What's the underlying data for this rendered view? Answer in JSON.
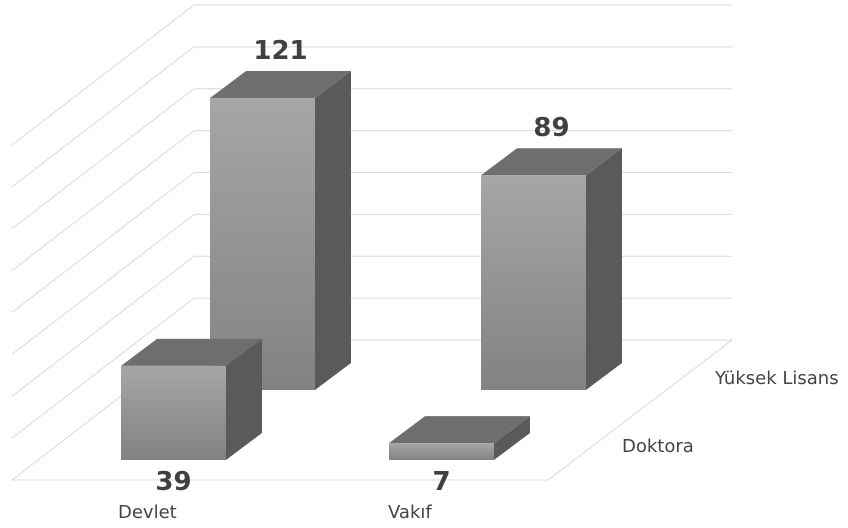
{
  "chart_data": {
    "type": "bar",
    "style": "3d-column",
    "categories": [
      "Devlet",
      "Vakıf"
    ],
    "depth_categories": [
      "Doktora",
      "Yüksek Lisans"
    ],
    "series": [
      {
        "name": "Doktora",
        "values": [
          39,
          7
        ]
      },
      {
        "name": "Yüksek Lisans",
        "values": [
          121,
          89
        ]
      }
    ],
    "grid": true,
    "value_axis_labels": false,
    "bar_color": "#8f8f8f"
  }
}
